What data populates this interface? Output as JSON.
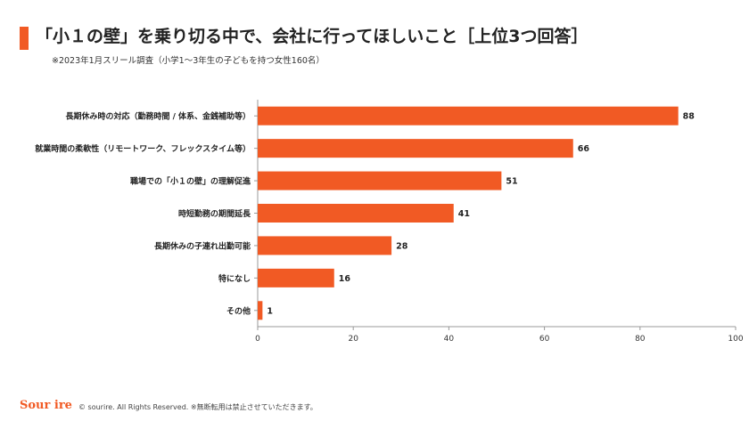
{
  "header": {
    "title": "「小１の壁」を乗り切る中で、会社に行ってほしいこと［上位3つ回答］",
    "subtitle": "※2023年1月スリール調査（小学1〜3年生の子どもを持つ女性160名）"
  },
  "colors": {
    "accent": "#f15a24",
    "axis": "#999999"
  },
  "chart_data": {
    "type": "bar",
    "orientation": "horizontal",
    "categories": [
      "長期休み時の対応（勤務時間 / 体系、金銭補助等）",
      "就業時間の柔軟性（リモートワーク、フレックスタイム等）",
      "職場での「小１の壁」の理解促進",
      "時短勤務の期間延長",
      "長期休みの子連れ出勤可能",
      "特になし",
      "その他"
    ],
    "values": [
      88,
      66,
      51,
      41,
      28,
      16,
      1
    ],
    "data_labels": [
      "88",
      "66",
      "51",
      "41",
      "28",
      "16",
      "1"
    ],
    "xlim": [
      0,
      100
    ],
    "xticks": [
      0,
      20,
      40,
      60,
      80,
      100
    ],
    "xtick_labels": [
      "0",
      "20",
      "40",
      "60",
      "80",
      "100"
    ],
    "grid": false,
    "legend": "none"
  },
  "footer": {
    "logo": "Sour ire",
    "copyright": "© sourire. All Rights Reserved. ※無断転用は禁止させていただきます。"
  }
}
